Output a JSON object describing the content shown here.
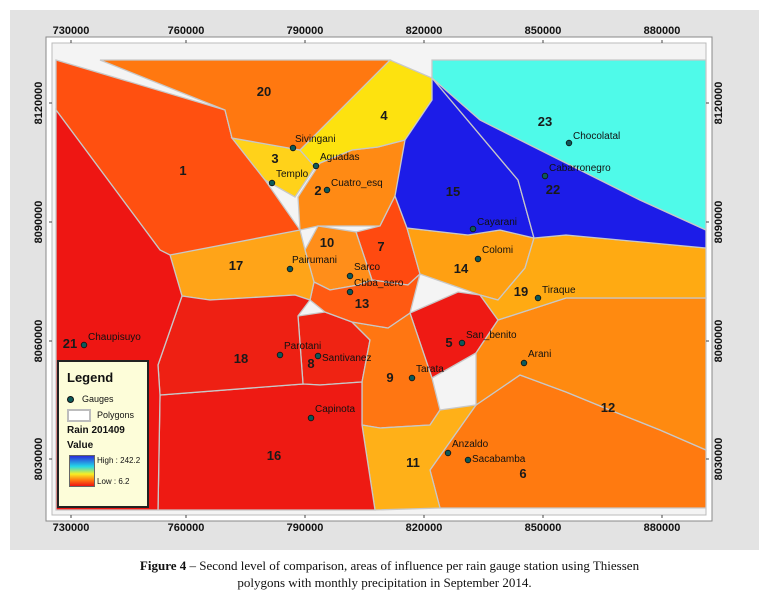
{
  "x_ticks": [
    "730000",
    "760000",
    "790000",
    "820000",
    "850000",
    "880000"
  ],
  "y_ticks": [
    "8120000",
    "8090000",
    "8060000",
    "8030000"
  ],
  "zones": [
    {
      "id": "1",
      "color": "#ff5010"
    },
    {
      "id": "2",
      "color": "#ff8a14"
    },
    {
      "id": "3",
      "color": "#ffd21a"
    },
    {
      "id": "4",
      "color": "#fde20f"
    },
    {
      "id": "5",
      "color": "#ef1a14"
    },
    {
      "id": "6",
      "color": "#ff7a10"
    },
    {
      "id": "7",
      "color": "#ff4a10"
    },
    {
      "id": "8",
      "color": "#ef2313"
    },
    {
      "id": "9",
      "color": "#ff7612"
    },
    {
      "id": "10",
      "color": "#ff8e1a"
    },
    {
      "id": "11",
      "color": "#ffb018"
    },
    {
      "id": "12",
      "color": "#ff8a10"
    },
    {
      "id": "13",
      "color": "#ff5a12"
    },
    {
      "id": "14",
      "color": "#ffa012"
    },
    {
      "id": "15",
      "color": "#1c1ce8"
    },
    {
      "id": "16",
      "color": "#ee1a13"
    },
    {
      "id": "17",
      "color": "#ffa418"
    },
    {
      "id": "18",
      "color": "#ee2013"
    },
    {
      "id": "19",
      "color": "#ffaa12"
    },
    {
      "id": "20",
      "color": "#ff7810"
    },
    {
      "id": "21",
      "color": "#ee1613"
    },
    {
      "id": "22",
      "color": "#1c1ce8"
    },
    {
      "id": "23",
      "color": "#4ffae9"
    }
  ],
  "gauges": [
    {
      "name": "Sivingani"
    },
    {
      "name": "Aguadas"
    },
    {
      "name": "Templo"
    },
    {
      "name": "Cuatro_esq"
    },
    {
      "name": "Chocolatal"
    },
    {
      "name": "Cabarronegro"
    },
    {
      "name": "Cayarani"
    },
    {
      "name": "Colomi"
    },
    {
      "name": "Pairumani"
    },
    {
      "name": "Sarco"
    },
    {
      "name": "Cbba_aero"
    },
    {
      "name": "Tiraque"
    },
    {
      "name": "San_benito"
    },
    {
      "name": "Chaupisuyo"
    },
    {
      "name": "Parotani"
    },
    {
      "name": "Santivanez"
    },
    {
      "name": "Arani"
    },
    {
      "name": "Tarata"
    },
    {
      "name": "Capinota"
    },
    {
      "name": "Anzaldo"
    },
    {
      "name": "Sacabamba"
    }
  ],
  "legend": {
    "title": "Legend",
    "gauges_label": "Gauges",
    "polygons_label": "Polygons",
    "raster_name": "Rain 201409",
    "value_label": "Value",
    "high_label": "High : 242.2",
    "low_label": "Low : 6.2",
    "high_value": 242.2,
    "low_value": 6.2
  },
  "caption": {
    "figure_label": "Figure 4",
    "line1": " – Second level of comparison, areas of influence per rain gauge station using Thiessen",
    "line2": "polygons with monthly precipitation in September 2014."
  }
}
